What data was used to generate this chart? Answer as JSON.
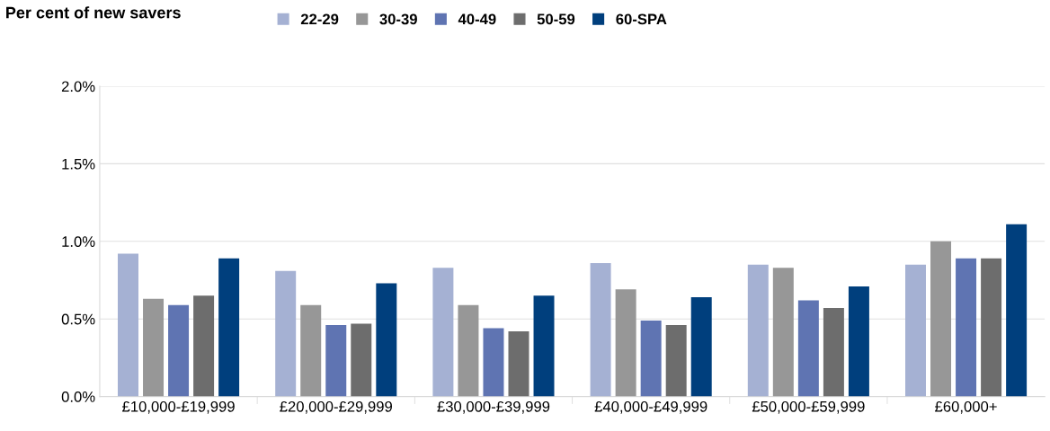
{
  "chart_data": {
    "type": "bar",
    "ylabel": "Per cent of new savers",
    "categories": [
      "£10,000-£19,999",
      "£20,000-£29,999",
      "£30,000-£39,999",
      "£40,000-£49,999",
      "£50,000-£59,999",
      "£60,000+"
    ],
    "series": [
      {
        "name": "22-29",
        "color": "#a5b1d3",
        "values": [
          0.92,
          0.81,
          0.83,
          0.86,
          0.85,
          0.85
        ]
      },
      {
        "name": "30-39",
        "color": "#979797",
        "values": [
          0.63,
          0.59,
          0.59,
          0.69,
          0.83,
          1.0
        ]
      },
      {
        "name": "40-49",
        "color": "#5f74b2",
        "values": [
          0.59,
          0.46,
          0.44,
          0.49,
          0.62,
          0.89
        ]
      },
      {
        "name": "50-59",
        "color": "#6d6d6d",
        "values": [
          0.65,
          0.47,
          0.42,
          0.46,
          0.57,
          0.89
        ]
      },
      {
        "name": "60-SPA",
        "color": "#003f7d",
        "values": [
          0.89,
          0.73,
          0.65,
          0.64,
          0.71,
          1.11
        ]
      }
    ],
    "ylim": [
      0,
      2
    ],
    "yticks": [
      {
        "value": 0,
        "label": "0.0%"
      },
      {
        "value": 0.5,
        "label": "0.5%"
      },
      {
        "value": 1,
        "label": "1.0%"
      },
      {
        "value": 1.5,
        "label": "1.5%"
      },
      {
        "value": 2,
        "label": "2.0%"
      }
    ],
    "grid": "y",
    "legend": "top"
  }
}
